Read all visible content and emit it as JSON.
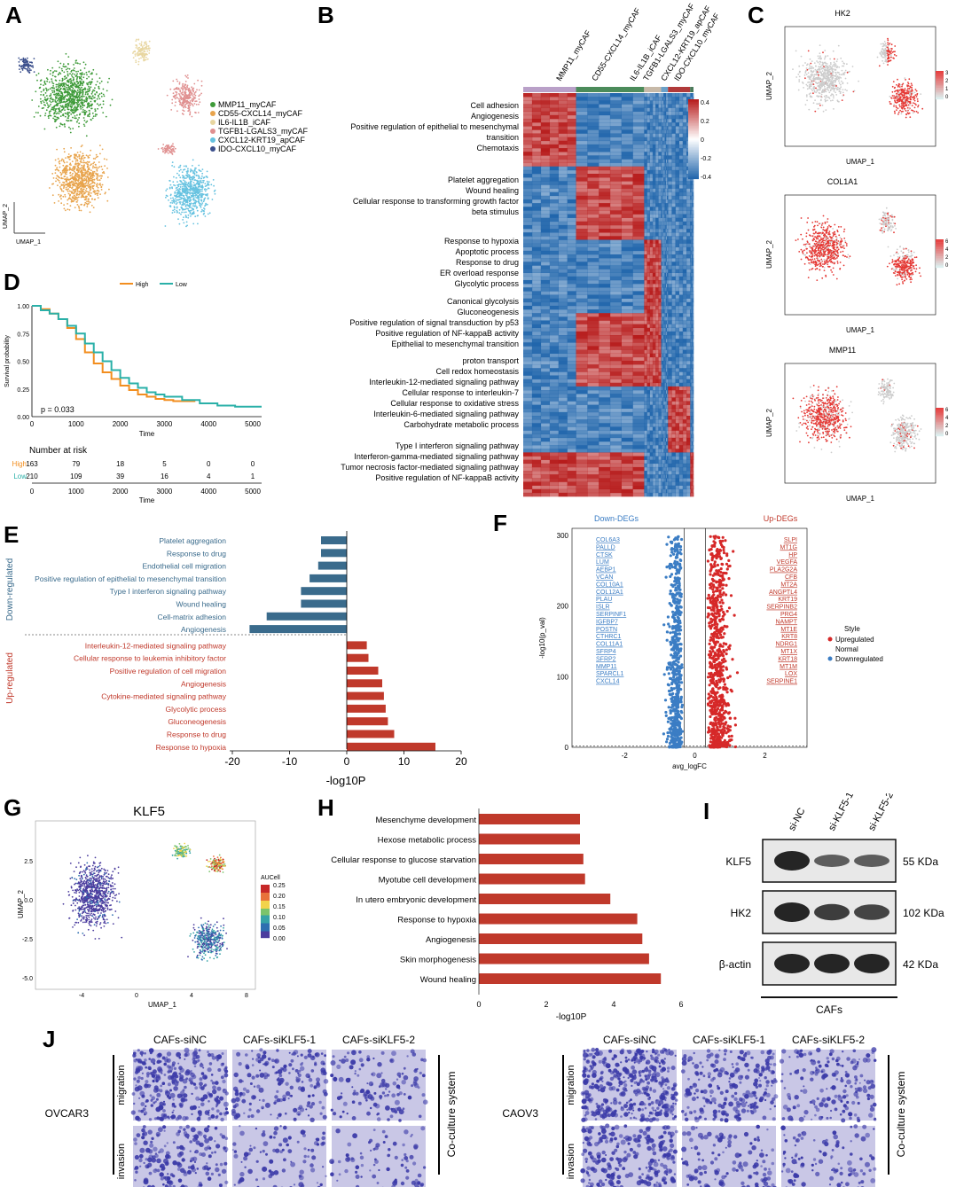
{
  "panels": {
    "A": "A",
    "B": "B",
    "C": "C",
    "D": "D",
    "E": "E",
    "F": "F",
    "G": "G",
    "H": "H",
    "I": "I",
    "J": "J"
  },
  "colors": {
    "red": "#c0392b",
    "blue": "#3a6b8c",
    "blue_light": "#3b7dc4",
    "orange": "#f28e1f",
    "teal": "#2ab0a8",
    "heat_red": "#b71c1c",
    "heat_blue": "#2166ac",
    "cluster_colors": [
      "#3f9b3a",
      "#e8a44d",
      "#e8d6a0",
      "#e09090",
      "#66c2e0",
      "#3b4f8c"
    ]
  },
  "panelA": {
    "axis_x": "UMAP_1",
    "axis_y": "UMAP_2",
    "legend": [
      "MMP11_myCAF",
      "CD55-CXCL14_myCAF",
      "IL6-IL1B_iCAF",
      "TGFB1-LGALS3_myCAF",
      "CXCL12-KRT19_apCAF",
      "IDO-CXCL10_myCAF"
    ]
  },
  "panelB": {
    "columns": [
      "MMP11_myCAF",
      "CD55-CXCL14_myCAF",
      "IL6-IL1B_iCAF",
      "TGFB1-LGALS3_myCAF",
      "CXCL12-KRT19_apCAF",
      "IDO-CXCL10_myCAF"
    ],
    "scale_ticks": [
      "0.4",
      "0.2",
      "0",
      "-0.2",
      "-0.4"
    ],
    "groups": [
      [
        "Cell adhesion",
        "Angiogenesis",
        "Positive regulation of epithelial to mesenchymal",
        "transition",
        "Chemotaxis"
      ],
      [
        "Platelet aggregation",
        "Wound healing",
        "Cellular response to transforming growth factor",
        "beta stimulus"
      ],
      [
        "Response to hypoxia",
        "Apoptotic process",
        "Response to drug",
        "ER overload response",
        "Glycolytic process"
      ],
      [
        "Canonical glycolysis",
        "Gluconeogenesis",
        "Positive regulation of signal transduction by p53",
        "Positive regulation of NF-kappaB activity",
        "Epithelial to mesenchymal transition"
      ],
      [
        "proton transport",
        "Cell redox homeostasis",
        "Interleukin-12-mediated signaling pathway",
        "Cellular response to interleukin-7",
        "Cellular response to oxidative stress",
        "Interleukin-6-mediated signaling pathway",
        "Carbohydrate metabolic process"
      ],
      [
        "Type I interferon signaling pathway",
        "Interferon-gamma-mediated signaling pathway",
        "Tumor necrosis factor-mediated signaling pathway",
        "Positive regulation of NF-kappaB activity"
      ]
    ]
  },
  "panelC": [
    {
      "title": "HK2",
      "xlabel": "UMAP_1",
      "ylabel": "UMAP_2",
      "scale": [
        "3",
        "2",
        "1",
        "0"
      ]
    },
    {
      "title": "COL1A1",
      "xlabel": "UMAP_1",
      "ylabel": "UMAP_2",
      "scale": [
        "6",
        "4",
        "2",
        "0"
      ]
    },
    {
      "title": "MMP11",
      "xlabel": "UMAP_1",
      "ylabel": "UMAP_2",
      "scale": [
        "6",
        "4",
        "2",
        "0"
      ]
    }
  ],
  "panelD": {
    "legend": [
      "High",
      "Low"
    ],
    "ylabel": "Survival probability",
    "xlabel": "Time",
    "pvalue": "p = 0.033",
    "risk_title": "Number at risk",
    "risk_rows": [
      {
        "name": "High",
        "values": [
          "163",
          "79",
          "18",
          "5",
          "0",
          "0"
        ]
      },
      {
        "name": "Low",
        "values": [
          "210",
          "109",
          "39",
          "16",
          "4",
          "1"
        ]
      }
    ]
  },
  "panelE": {
    "group_down": "Down-regulated",
    "group_up": "Up-regulated",
    "xlabel": "-log10P"
  },
  "panelF": {
    "down_title": "Down-DEGs",
    "up_title": "Up-DEGs",
    "down_genes": [
      "COL6A3",
      "PALLD",
      "CTSK",
      "LUM",
      "AEBP1",
      "VCAN",
      "COL10A1",
      "COL12A1",
      "PLAU",
      "ISLR",
      "SERPINF1",
      "IGFBP7",
      "POSTN",
      "CTHRC1",
      "COL11A1",
      "SFRP4",
      "SFRP2",
      "MMP11",
      "SPARCL1",
      "CXCL14"
    ],
    "up_genes": [
      "SLPI",
      "MT1G",
      "HP",
      "VEGFA",
      "PLA2G2A",
      "CFB",
      "MT2A",
      "ANGPTL4",
      "KRT19",
      "SERPINB2",
      "PRG4",
      "NAMPT",
      "MT1E",
      "KRT8",
      "NDRG1",
      "MT1X",
      "KRT18",
      "MT1M",
      "LOX",
      "SERPINE1"
    ],
    "ylabel": "-log10(p_val)",
    "xlabel": "avg_logFC",
    "legend_title": "Style",
    "legend": [
      "Upregulated",
      "Normal",
      "Downregulated"
    ]
  },
  "panelG": {
    "title": "KLF5",
    "xlabel": "UMAP_1",
    "ylabel": "UMAP_2",
    "scale_title": "AUCell",
    "scale": [
      "0.25",
      "0.20",
      "0.15",
      "0.10",
      "0.05",
      "0.00"
    ]
  },
  "panelH": {
    "xlabel": "-log10P"
  },
  "panelI": {
    "lanes": [
      "si-NC",
      "si-KLF5-1",
      "si-KLF5-2"
    ],
    "rows": [
      {
        "name": "KLF5",
        "size": "55 KDa"
      },
      {
        "name": "HK2",
        "size": "102 KDa"
      },
      {
        "name": "β-actin",
        "size": "42 KDa"
      }
    ],
    "caption": "CAFs"
  },
  "panelJ": {
    "columns": [
      "CAFs-siNC",
      "CAFs-siKLF5-1",
      "CAFs-siKLF5-2"
    ],
    "rows": [
      "migration",
      "invasion"
    ],
    "cell_lines": [
      "OVCAR3",
      "CAOV3"
    ],
    "side": "Co-culture system"
  },
  "chart_data": [
    {
      "type": "line",
      "panel": "D",
      "xlabel": "Time",
      "ylabel": "Survival probability",
      "xlim": [
        0,
        5200
      ],
      "ylim": [
        0,
        1
      ],
      "xticks": [
        0,
        1000,
        2000,
        3000,
        4000,
        5000
      ],
      "yticks": [
        0.0,
        0.25,
        0.5,
        0.75,
        1.0
      ],
      "series": [
        {
          "name": "High",
          "x": [
            0,
            200,
            400,
            600,
            800,
            1000,
            1200,
            1400,
            1600,
            1800,
            2000,
            2200,
            2400,
            2600,
            2800,
            3000,
            3200,
            3400,
            3700
          ],
          "values": [
            1.0,
            0.97,
            0.93,
            0.88,
            0.8,
            0.7,
            0.58,
            0.48,
            0.4,
            0.34,
            0.28,
            0.24,
            0.2,
            0.18,
            0.16,
            0.15,
            0.14,
            0.14,
            0.14
          ]
        },
        {
          "name": "Low",
          "x": [
            0,
            200,
            400,
            600,
            800,
            1000,
            1200,
            1400,
            1600,
            1800,
            2000,
            2200,
            2400,
            2600,
            2800,
            3000,
            3400,
            3800,
            4200,
            4600,
            5200
          ],
          "values": [
            1.0,
            0.96,
            0.93,
            0.88,
            0.82,
            0.75,
            0.66,
            0.58,
            0.5,
            0.42,
            0.35,
            0.3,
            0.26,
            0.22,
            0.2,
            0.18,
            0.15,
            0.12,
            0.1,
            0.09,
            0.09
          ]
        }
      ]
    },
    {
      "type": "bar",
      "panel": "E",
      "orientation": "horizontal",
      "xlabel": "-log10P",
      "xlim": [
        -20,
        20
      ],
      "xticks": [
        -20,
        -10,
        0,
        10,
        20
      ],
      "categories": [
        "Platelet aggregation",
        "Response to drug",
        "Endothelial cell migration",
        "Positive regulation of epithelial to mesenchymal transition",
        "Type I interferon signaling pathway",
        "Wound healing",
        "Cell-matrix adhesion",
        "Angiogenesis",
        "Interleukin-12-mediated signaling pathway",
        "Cellular response to leukemia inhibitory factor",
        "Positive regulation of cell migration",
        "Angiogenesis",
        "Cytokine-mediated signaling pathway",
        "Glycolytic process",
        "Gluconeogenesis",
        "Response to drug",
        "Response to hypoxia"
      ],
      "values": [
        -4.5,
        -4.5,
        -5.0,
        -6.5,
        -8.0,
        -8.0,
        -14.0,
        -17.0,
        3.5,
        3.8,
        5.5,
        6.2,
        6.5,
        6.8,
        7.2,
        8.3,
        15.5
      ]
    },
    {
      "type": "scatter",
      "panel": "F",
      "xlabel": "avg_logFC",
      "ylabel": "-log10(p_val)",
      "xlim": [
        -3.5,
        3.2
      ],
      "ylim": [
        0,
        310
      ],
      "xticks": [
        -2,
        0,
        2
      ],
      "yticks": [
        0,
        100,
        200,
        300
      ],
      "series": [
        {
          "name": "Upregulated"
        },
        {
          "name": "Normal"
        },
        {
          "name": "Downregulated"
        }
      ]
    },
    {
      "type": "bar",
      "panel": "H",
      "orientation": "horizontal",
      "xlabel": "-log10P",
      "xlim": [
        0,
        6
      ],
      "xticks": [
        0,
        2,
        4,
        6
      ],
      "categories": [
        "Mesenchyme development",
        "Hexose metabolic process",
        "Cellular response to glucose starvation",
        "Myotube cell development",
        "In utero embryonic development",
        "Response to hypoxia",
        "Angiogenesis",
        "Skin morphogenesis",
        "Wound healing"
      ],
      "values": [
        3.0,
        3.0,
        3.1,
        3.15,
        3.9,
        4.7,
        4.85,
        5.05,
        5.4
      ]
    }
  ]
}
